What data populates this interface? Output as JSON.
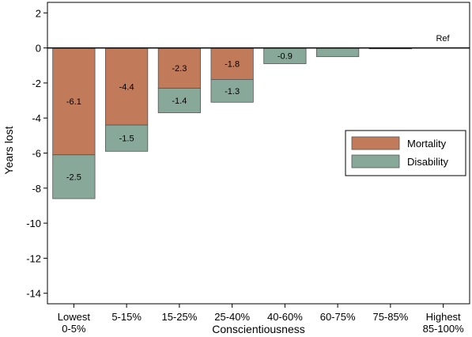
{
  "chart_data": {
    "type": "bar",
    "stacked": true,
    "ylabel": "Years lost",
    "xlabel": "Conscientiousness",
    "ylim": [
      -14.6,
      2.6
    ],
    "yticks": [
      2,
      0,
      -2,
      -4,
      -6,
      -8,
      -10,
      -12,
      -14
    ],
    "categories": [
      [
        "Lowest",
        "0-5%"
      ],
      [
        "5-15%"
      ],
      [
        "15-25%"
      ],
      [
        "25-40%"
      ],
      [
        "40-60%"
      ],
      [
        "60-75%"
      ],
      [
        "75-85%"
      ],
      [
        "Highest",
        "85-100%"
      ]
    ],
    "series": [
      {
        "name": "Mortality",
        "color": "#c17a5a",
        "values": [
          -6.1,
          -4.4,
          -2.3,
          -1.8,
          0,
          0,
          0,
          0
        ],
        "labels": [
          "-6.1",
          "-4.4",
          "-2.3",
          "-1.8",
          "",
          "",
          "",
          ""
        ]
      },
      {
        "name": "Disability",
        "color": "#88a89a",
        "values": [
          -2.5,
          -1.5,
          -1.4,
          -1.3,
          -0.9,
          -0.5,
          -0.05,
          0
        ],
        "labels": [
          "-2.5",
          "-1.5",
          "-1.4",
          "-1.3",
          "-0.9",
          "",
          "",
          ""
        ]
      }
    ],
    "reference_label": "Ref",
    "legend_position": "right",
    "grid": false
  }
}
